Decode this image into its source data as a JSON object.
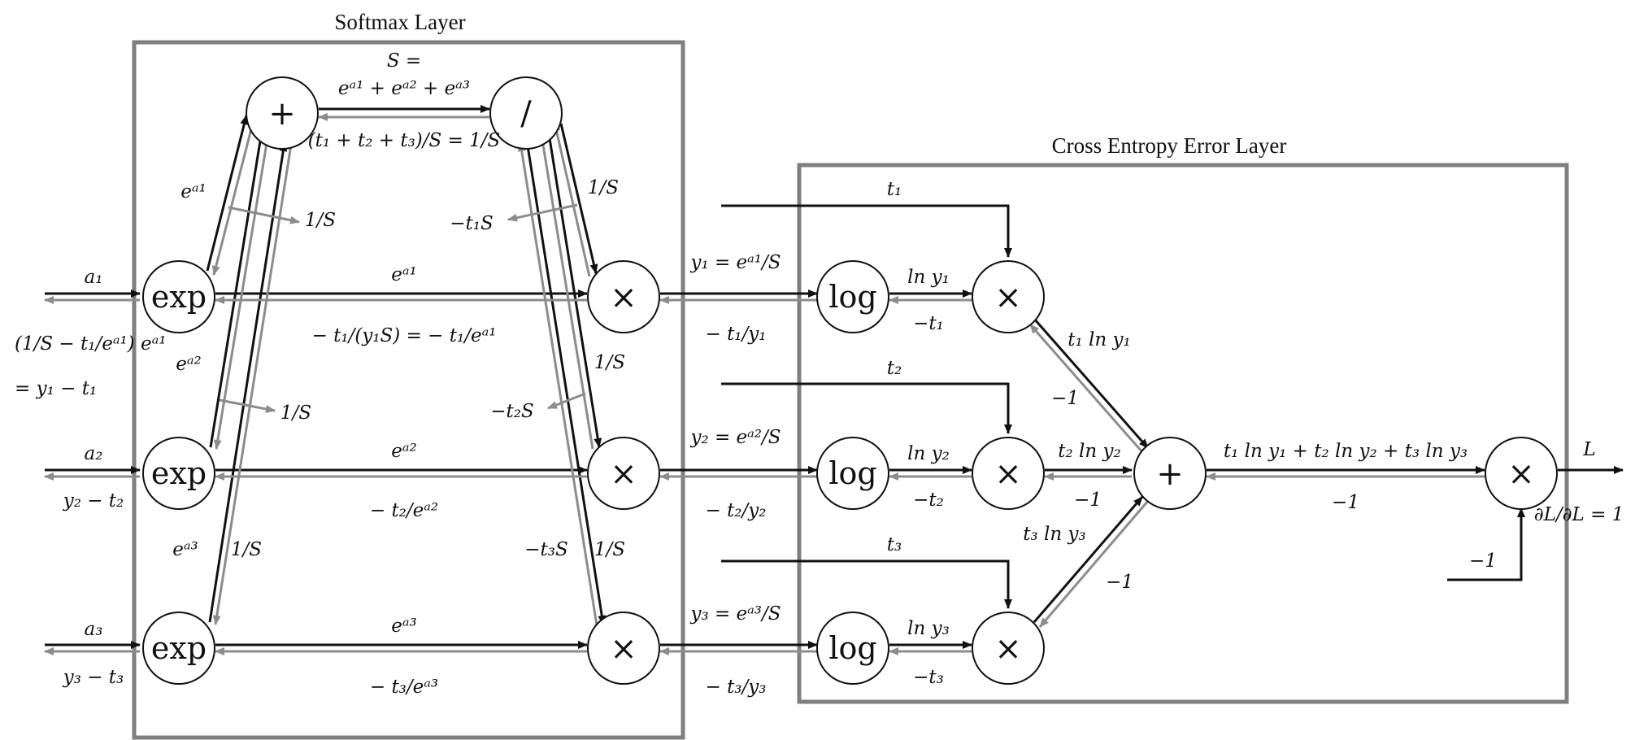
{
  "layers": {
    "softmax_title": "Softmax Layer",
    "cee_title": "Cross Entropy Error Layer"
  },
  "nodes": {
    "exp": "exp",
    "log": "log",
    "times": "×",
    "plus": "+",
    "divide": "/"
  },
  "labels": {
    "a1": "a₁",
    "a2": "a₂",
    "a3": "a₃",
    "back_a1_line1": "(1/S − t₁/eᵃ¹) eᵃ¹",
    "back_a1_line2": "= y₁ − t₁",
    "back_a2": "y₂ − t₂",
    "back_a3": "y₃ − t₃",
    "S_def_line1": "S =",
    "S_def_line2": "eᵃ¹ + eᵃ² + eᵃ³",
    "sum_t_over_S": "(t₁ + t₂ + t₃)/S = 1/S",
    "ea1_up": "eᵃ¹",
    "ea2_up": "eᵃ²",
    "ea3_up": "eᵃ³",
    "inv_S_a": "1/S",
    "inv_S_b": "1/S",
    "inv_S_c": "1/S",
    "inv_S_d": "1/S",
    "inv_S_e": "1/S",
    "inv_S_f": "1/S",
    "neg_t1S": "−t₁S",
    "neg_t2S": "−t₂S",
    "neg_t3S": "−t₃S",
    "ea1_mid": "eᵃ¹",
    "ea2_mid": "eᵃ²",
    "ea3_mid": "eᵃ³",
    "back_mid1": "− t₁/(y₁S) = − t₁/eᵃ¹",
    "back_mid2": "− t₂/eᵃ²",
    "back_mid3": "− t₃/eᵃ³",
    "y1": "y₁ = eᵃ¹/S",
    "y2": "y₂ = eᵃ²/S",
    "y3": "y₃ = eᵃ³/S",
    "back_y1": "− t₁/y₁",
    "back_y2": "− t₂/y₂",
    "back_y3": "− t₃/y₃",
    "t1": "t₁",
    "t2": "t₂",
    "t3": "t₃",
    "lny1": "ln y₁",
    "lny2": "ln y₂",
    "lny3": "ln y₃",
    "neg_t1": "−t₁",
    "neg_t2": "−t₂",
    "neg_t3": "−t₃",
    "t1lny1": "t₁ ln y₁",
    "t2lny2": "t₂ ln y₂",
    "t3lny3": "t₃ ln y₃",
    "neg1_a": "−1",
    "neg1_b": "−1",
    "neg1_c": "−1",
    "neg1_d": "−1",
    "neg1_e": "−1",
    "sum_all": "t₁ ln y₁ + t₂ ln y₂ + t₃ ln y₃",
    "L": "L",
    "dLdL": "∂L/∂L = 1"
  }
}
